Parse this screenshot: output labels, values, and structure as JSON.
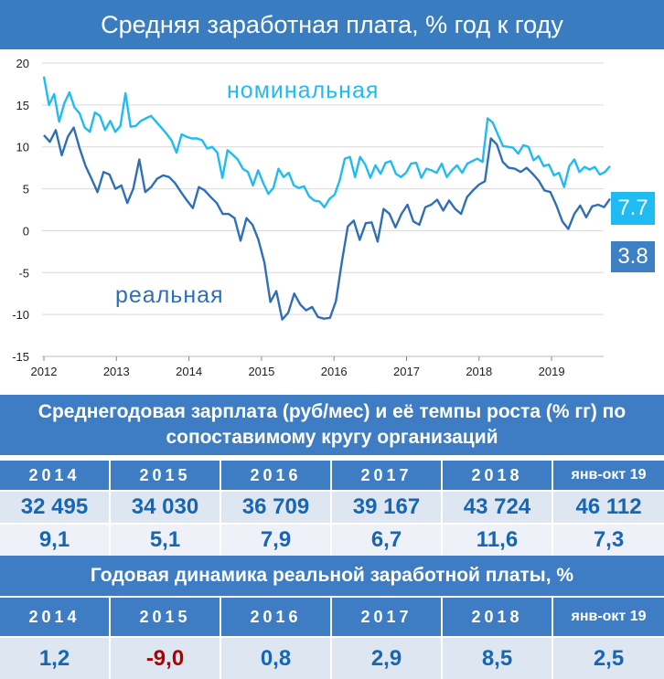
{
  "title": "Средняя заработная плата, % год к году",
  "chart_data": {
    "type": "line",
    "x_label_years": [
      "2012",
      "2013",
      "2014",
      "2015",
      "2016",
      "2017",
      "2018",
      "2019"
    ],
    "ylim": [
      -15,
      20
    ],
    "y_ticks": [
      "20",
      "15",
      "10",
      "5",
      "0",
      "-5",
      "-10",
      "-15"
    ],
    "grid": "horizontal",
    "annotations": {
      "nominal": "номинальная",
      "real": "реальная"
    },
    "end_labels": {
      "nominal": "7.7",
      "real": "3.8"
    },
    "colors": {
      "nominal": "#1ebcf2",
      "real": "#2f6fb8"
    },
    "series": [
      {
        "name": "номинальная",
        "values": [
          18.4,
          15.0,
          16.3,
          13.0,
          15.2,
          16.5,
          14.7,
          14.0,
          12.3,
          11.8,
          14.1,
          13.7,
          12.0,
          13.1,
          11.8,
          12.5,
          16.4,
          12.4,
          12.5,
          13.1,
          13.4,
          13.7,
          13.0,
          12.3,
          11.6,
          10.8,
          9.3,
          11.5,
          11.2,
          11.0,
          11.0,
          10.8,
          9.8,
          10.0,
          9.3,
          6.3,
          9.6,
          9.1,
          8.5,
          7.4,
          7.0,
          5.4,
          7.2,
          5.7,
          4.4,
          5.1,
          7.4,
          6.4,
          6.9,
          5.4,
          5.1,
          5.3,
          4.1,
          3.6,
          3.5,
          2.8,
          3.8,
          4.3,
          6.0,
          8.6,
          8.8,
          6.4,
          8.8,
          7.9,
          6.3,
          7.8,
          6.8,
          8.1,
          8.3,
          6.8,
          6.4,
          6.9,
          8.0,
          8.1,
          6.3,
          7.4,
          7.2,
          6.9,
          8.0,
          6.4,
          7.2,
          7.8,
          6.9,
          8.0,
          8.3,
          8.6,
          8.2,
          13.4,
          12.9,
          11.5,
          10.1,
          10.0,
          9.9,
          9.2,
          10.2,
          10.0,
          8.4,
          8.9,
          7.7,
          7.9,
          6.6,
          6.9,
          5.2,
          7.7,
          8.5,
          7.0,
          7.6,
          7.3,
          7.6,
          6.7,
          7.0,
          7.7
        ]
      },
      {
        "name": "реальная",
        "values": [
          11.4,
          10.6,
          12.0,
          9.0,
          11.2,
          12.3,
          9.8,
          7.7,
          6.2,
          4.6,
          7.0,
          6.7,
          5.0,
          5.4,
          3.3,
          5.0,
          8.5,
          4.6,
          5.2,
          6.2,
          6.6,
          6.4,
          5.7,
          4.6,
          3.6,
          2.7,
          5.2,
          4.8,
          4.0,
          3.3,
          2.0,
          2.0,
          1.5,
          -1.2,
          1.5,
          0.7,
          -1.1,
          -3.8,
          -8.5,
          -7.2,
          -10.6,
          -9.8,
          -7.5,
          -8.8,
          -9.5,
          -9.1,
          -10.3,
          -10.5,
          -10.4,
          -8.4,
          -3.7,
          0.5,
          1.2,
          -1.1,
          0.9,
          1.0,
          -1.3,
          2.6,
          2.0,
          0.4,
          2.0,
          3.1,
          1.1,
          0.7,
          2.8,
          3.1,
          3.7,
          2.4,
          3.6,
          2.6,
          2.0,
          4.0,
          4.8,
          5.5,
          5.9,
          11.0,
          10.3,
          8.2,
          7.5,
          7.4,
          7.0,
          7.5,
          6.8,
          6.0,
          4.8,
          4.6,
          3.0,
          1.1,
          0.2,
          2.0,
          3.0,
          1.6,
          2.9,
          3.1,
          2.8,
          3.8
        ]
      }
    ]
  },
  "table1": {
    "title_line1": "Среднегодовая зарплата (руб/мес) и её темпы роста (% гг)  по",
    "title_line2": "сопоставимому кругу организаций",
    "years": [
      "2014",
      "2015",
      "2016",
      "2017",
      "2018",
      "янв-окт 19"
    ],
    "salaries": [
      "32 495",
      "34 030",
      "36 709",
      "39 167",
      "43 724",
      "46 112"
    ],
    "growth": [
      "9,1",
      "5,1",
      "7,9",
      "6,7",
      "11,6",
      "7,3"
    ]
  },
  "table2": {
    "title": "Годовая динамика реальной заработной платы, %",
    "years": [
      "2014",
      "2015",
      "2016",
      "2017",
      "2018",
      "янв-окт 19"
    ],
    "values": [
      "1,2",
      "-9,0",
      "0,8",
      "2,9",
      "8,5",
      "2,5"
    ]
  }
}
